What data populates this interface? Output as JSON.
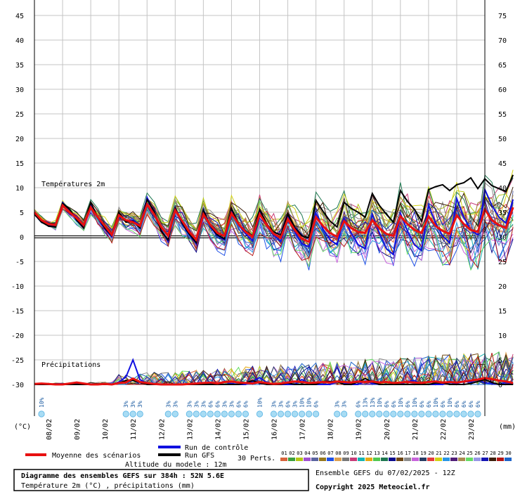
{
  "chart_data": {
    "type": "line",
    "title": "Diagramme des ensembles GEFS sur 384h : 52N 5.6E",
    "subtitle": "Température 2m (°C) , précipitations (mm)",
    "temp_panel_label": "Températures 2m",
    "precip_panel_label": "Précipitations",
    "left_axis_unit": "(°C)",
    "right_axis_unit": "(mm)",
    "left_ticks": [
      45,
      40,
      35,
      30,
      25,
      20,
      15,
      10,
      5,
      0,
      -5,
      -10,
      -15,
      -20,
      -25,
      -30
    ],
    "right_ticks": [
      75,
      70,
      65,
      60,
      55,
      50,
      45,
      40,
      35,
      30,
      25,
      20,
      15,
      10,
      5,
      0
    ],
    "temp_ylim": [
      -30,
      45
    ],
    "x_hours_max": 384,
    "step_hours": 6,
    "grid": true,
    "dates": [
      {
        "label": "08/02",
        "hour": 12
      },
      {
        "label": "09/02",
        "hour": 36
      },
      {
        "label": "10/02",
        "hour": 60
      },
      {
        "label": "11/02",
        "hour": 84
      },
      {
        "label": "12/02",
        "hour": 108
      },
      {
        "label": "13/02",
        "hour": 132
      },
      {
        "label": "14/02",
        "hour": 156
      },
      {
        "label": "15/02",
        "hour": 180
      },
      {
        "label": "16/02",
        "hour": 204
      },
      {
        "label": "17/02",
        "hour": 228
      },
      {
        "label": "18/02",
        "hour": 252
      },
      {
        "label": "19/02",
        "hour": 276
      },
      {
        "label": "20/02",
        "hour": 300
      },
      {
        "label": "21/02",
        "hour": 324
      },
      {
        "label": "22/02",
        "hour": 348
      },
      {
        "label": "23/02",
        "hour": 372
      }
    ],
    "snow_probabilities": [
      {
        "hour": 6,
        "pct": "10%"
      },
      {
        "hour": 78,
        "pct": "3%"
      },
      {
        "hour": 84,
        "pct": "3%"
      },
      {
        "hour": 90,
        "pct": "3%"
      },
      {
        "hour": 114,
        "pct": "3%"
      },
      {
        "hour": 120,
        "pct": "3%"
      },
      {
        "hour": 132,
        "pct": "3%"
      },
      {
        "hour": 138,
        "pct": "3%"
      },
      {
        "hour": 144,
        "pct": "3%"
      },
      {
        "hour": 150,
        "pct": "6%"
      },
      {
        "hour": 156,
        "pct": "6%"
      },
      {
        "hour": 162,
        "pct": "3%"
      },
      {
        "hour": 168,
        "pct": "3%"
      },
      {
        "hour": 174,
        "pct": "6%"
      },
      {
        "hour": 180,
        "pct": "6%"
      },
      {
        "hour": 192,
        "pct": "10%"
      },
      {
        "hour": 204,
        "pct": "3%"
      },
      {
        "hour": 210,
        "pct": "3%"
      },
      {
        "hour": 216,
        "pct": "6%"
      },
      {
        "hour": 222,
        "pct": "3%"
      },
      {
        "hour": 228,
        "pct": "10%"
      },
      {
        "hour": 234,
        "pct": "10%"
      },
      {
        "hour": 240,
        "pct": "6%"
      },
      {
        "hour": 258,
        "pct": "3%"
      },
      {
        "hour": 264,
        "pct": "3%"
      },
      {
        "hour": 276,
        "pct": "6%"
      },
      {
        "hour": 282,
        "pct": "13%"
      },
      {
        "hour": 288,
        "pct": "13%"
      },
      {
        "hour": 294,
        "pct": "10%"
      },
      {
        "hour": 300,
        "pct": "6%"
      },
      {
        "hour": 306,
        "pct": "6%"
      },
      {
        "hour": 312,
        "pct": "10%"
      },
      {
        "hour": 318,
        "pct": "6%"
      },
      {
        "hour": 324,
        "pct": "10%"
      },
      {
        "hour": 330,
        "pct": "6%"
      },
      {
        "hour": 336,
        "pct": "6%"
      },
      {
        "hour": 342,
        "pct": "10%"
      },
      {
        "hour": 348,
        "pct": "6%"
      },
      {
        "hour": 354,
        "pct": "10%"
      },
      {
        "hour": 360,
        "pct": "6%"
      },
      {
        "hour": 366,
        "pct": "6%"
      },
      {
        "hour": 372,
        "pct": "6%"
      },
      {
        "hour": 378,
        "pct": "6%"
      }
    ],
    "series": [
      {
        "name": "Moyenne des scénarios",
        "color": "#e81010",
        "temp": [
          5.0,
          3.4,
          2.6,
          2.4,
          6.4,
          5.0,
          3.8,
          2.4,
          6.0,
          4.0,
          2.2,
          0.4,
          4.4,
          3.4,
          3.0,
          2.2,
          6.6,
          4.6,
          2.0,
          0.2,
          5.4,
          3.2,
          1.0,
          -0.6,
          4.6,
          2.4,
          0.8,
          0.2,
          4.8,
          2.6,
          1.0,
          0.0,
          4.6,
          2.4,
          0.6,
          -0.2,
          3.6,
          1.4,
          -0.4,
          -1.0,
          4.0,
          2.2,
          0.8,
          0.0,
          3.2,
          1.8,
          1.0,
          0.8,
          3.4,
          1.8,
          0.6,
          0.2,
          4.2,
          2.6,
          1.4,
          0.8,
          4.2,
          2.2,
          1.2,
          0.6,
          4.4,
          2.6,
          1.4,
          1.0,
          5.6,
          3.4,
          2.4,
          1.8,
          6.0
        ],
        "precip": [
          0.1,
          0.2,
          0.1,
          0.0,
          0.0,
          0.2,
          0.4,
          0.2,
          0.0,
          0.0,
          0.1,
          0.0,
          0.3,
          0.4,
          1.2,
          0.5,
          0.3,
          0.1,
          0.0,
          0.0,
          0.0,
          0.0,
          0.1,
          0.2,
          0.3,
          0.4,
          0.2,
          0.5,
          0.6,
          0.4,
          0.3,
          0.2,
          0.5,
          0.3,
          0.1,
          0.2,
          0.4,
          0.6,
          0.5,
          0.3,
          0.4,
          0.5,
          0.4,
          0.6,
          0.5,
          0.4,
          0.6,
          0.5,
          0.6,
          0.4,
          0.5,
          0.3,
          0.4,
          0.5,
          0.4,
          0.3,
          0.5,
          0.6,
          0.4,
          0.5,
          0.4,
          0.6,
          0.8,
          1.0,
          1.3,
          1.1,
          0.8,
          0.6,
          0.3
        ]
      },
      {
        "name": "Run de contrôle",
        "color": "#1010e0",
        "temp": [
          4.8,
          3.2,
          2.4,
          2.2,
          7.0,
          5.4,
          3.6,
          2.0,
          6.8,
          3.8,
          1.6,
          0.0,
          4.8,
          3.2,
          3.4,
          2.0,
          8.0,
          4.8,
          1.4,
          -1.0,
          6.0,
          2.6,
          0.4,
          -1.4,
          5.6,
          2.0,
          0.2,
          -0.6,
          5.2,
          2.4,
          0.6,
          -0.8,
          5.0,
          2.2,
          0.4,
          -1.0,
          4.0,
          1.0,
          -1.4,
          -2.0,
          4.8,
          1.6,
          -0.6,
          -1.6,
          3.8,
          0.8,
          -1.6,
          -2.4,
          4.6,
          0.8,
          -2.4,
          -3.6,
          4.8,
          1.2,
          -1.6,
          -2.8,
          6.4,
          2.8,
          0.2,
          -1.2,
          7.8,
          4.0,
          1.4,
          0.4,
          9.6,
          6.4,
          4.0,
          2.8,
          7.6
        ],
        "precip": [
          0.0,
          0.0,
          0.0,
          0.0,
          0.0,
          0.0,
          0.2,
          0.0,
          0.0,
          0.0,
          0.0,
          0.0,
          0.5,
          1.5,
          5.0,
          1.0,
          0.2,
          0.0,
          0.0,
          0.0,
          0.0,
          0.0,
          0.0,
          0.0,
          0.0,
          0.3,
          0.0,
          0.0,
          0.2,
          0.0,
          0.0,
          0.6,
          1.4,
          0.4,
          0.0,
          0.0,
          0.0,
          0.0,
          1.0,
          0.3,
          0.0,
          0.0,
          0.0,
          0.5,
          0.3,
          0.0,
          0.0,
          0.7,
          0.2,
          0.0,
          0.0,
          0.0,
          0.0,
          0.6,
          0.8,
          0.0,
          0.0,
          0.0,
          0.0,
          0.4,
          0.2,
          0.6,
          0.5,
          1.0,
          0.3,
          0.2,
          0.0,
          0.4,
          0.0
        ]
      },
      {
        "name": "Run GFS",
        "color": "#000000",
        "temp": [
          4.6,
          3.0,
          2.2,
          2.0,
          6.8,
          5.6,
          3.4,
          1.8,
          7.0,
          4.0,
          1.8,
          0.2,
          5.0,
          3.0,
          3.2,
          1.8,
          7.6,
          5.2,
          1.2,
          -0.6,
          5.8,
          2.8,
          0.6,
          -1.2,
          5.4,
          2.2,
          0.4,
          -0.4,
          5.8,
          2.6,
          1.2,
          0.2,
          5.6,
          2.6,
          1.0,
          0.4,
          4.6,
          1.8,
          0.2,
          -0.2,
          7.4,
          5.2,
          3.2,
          2.0,
          7.0,
          5.8,
          5.0,
          4.0,
          8.8,
          6.4,
          4.6,
          3.0,
          9.4,
          7.2,
          5.6,
          3.2,
          9.6,
          10.2,
          10.6,
          9.4,
          10.6,
          11.0,
          12.0,
          9.8,
          11.8,
          10.4,
          9.8,
          9.2,
          12.6
        ],
        "precip": [
          0.0,
          0.0,
          0.0,
          0.0,
          0.0,
          0.0,
          0.0,
          0.0,
          0.0,
          0.0,
          0.0,
          0.0,
          0.3,
          0.8,
          0.8,
          0.4,
          0.0,
          0.0,
          0.0,
          0.0,
          0.0,
          0.0,
          0.0,
          0.0,
          0.0,
          0.0,
          0.0,
          0.0,
          0.0,
          0.0,
          0.3,
          0.8,
          0.3,
          0.0,
          0.0,
          0.0,
          0.3,
          0.0,
          0.0,
          0.0,
          0.0,
          0.6,
          0.6,
          0.6,
          0.0,
          0.0,
          0.5,
          1.2,
          0.5,
          0.0,
          0.0,
          0.0,
          0.0,
          0.0,
          0.0,
          0.0,
          0.0,
          0.3,
          0.3,
          0.0,
          0.0,
          0.0,
          0.2,
          0.6,
          1.0,
          0.4,
          0.0,
          0.0,
          0.0
        ]
      }
    ],
    "legend": {
      "mean": "Moyenne des scénarios",
      "control": "Run de contrôle",
      "gfs": "Run GFS",
      "altitude": "Altitude du modele : 12m",
      "perts_label": "30 Perts.",
      "perts": [
        {
          "id": "01",
          "color": "#d8643c"
        },
        {
          "id": "02",
          "color": "#3ca03c"
        },
        {
          "id": "03",
          "color": "#b4c814"
        },
        {
          "id": "04",
          "color": "#a050d0"
        },
        {
          "id": "05",
          "color": "#5a64a0"
        },
        {
          "id": "06",
          "color": "#96781e"
        },
        {
          "id": "07",
          "color": "#1e50e6"
        },
        {
          "id": "08",
          "color": "#dca050"
        },
        {
          "id": "09",
          "color": "#787878"
        },
        {
          "id": "10",
          "color": "#c83c78"
        },
        {
          "id": "11",
          "color": "#14b4b4"
        },
        {
          "id": "12",
          "color": "#e6aa14"
        },
        {
          "id": "13",
          "color": "#50c850"
        },
        {
          "id": "14",
          "color": "#1e7850"
        },
        {
          "id": "15",
          "color": "#0a0a8c"
        },
        {
          "id": "16",
          "color": "#6e4614"
        },
        {
          "id": "17",
          "color": "#8c8c8c"
        },
        {
          "id": "18",
          "color": "#c864dc"
        },
        {
          "id": "19",
          "color": "#283c64"
        },
        {
          "id": "20",
          "color": "#e63c3c"
        },
        {
          "id": "21",
          "color": "#d2d214"
        },
        {
          "id": "22",
          "color": "#2896e6"
        },
        {
          "id": "23",
          "color": "#501e78"
        },
        {
          "id": "24",
          "color": "#aa8c50"
        },
        {
          "id": "25",
          "color": "#64dc64"
        },
        {
          "id": "26",
          "color": "#9696e6"
        },
        {
          "id": "27",
          "color": "#1414b4"
        },
        {
          "id": "28",
          "color": "#3c1e0a"
        },
        {
          "id": "29",
          "color": "#b41414"
        },
        {
          "id": "30",
          "color": "#1e64c8"
        }
      ]
    }
  },
  "footer": {
    "title": "Diagramme des ensembles GEFS sur 384h : 52N 5.6E",
    "subtitle": "Température 2m (°C) , précipitations (mm)",
    "run_info": "Ensemble GEFS du 07/02/2025 - 12Z",
    "copyright": "Copyright 2025 Meteociel.fr"
  }
}
